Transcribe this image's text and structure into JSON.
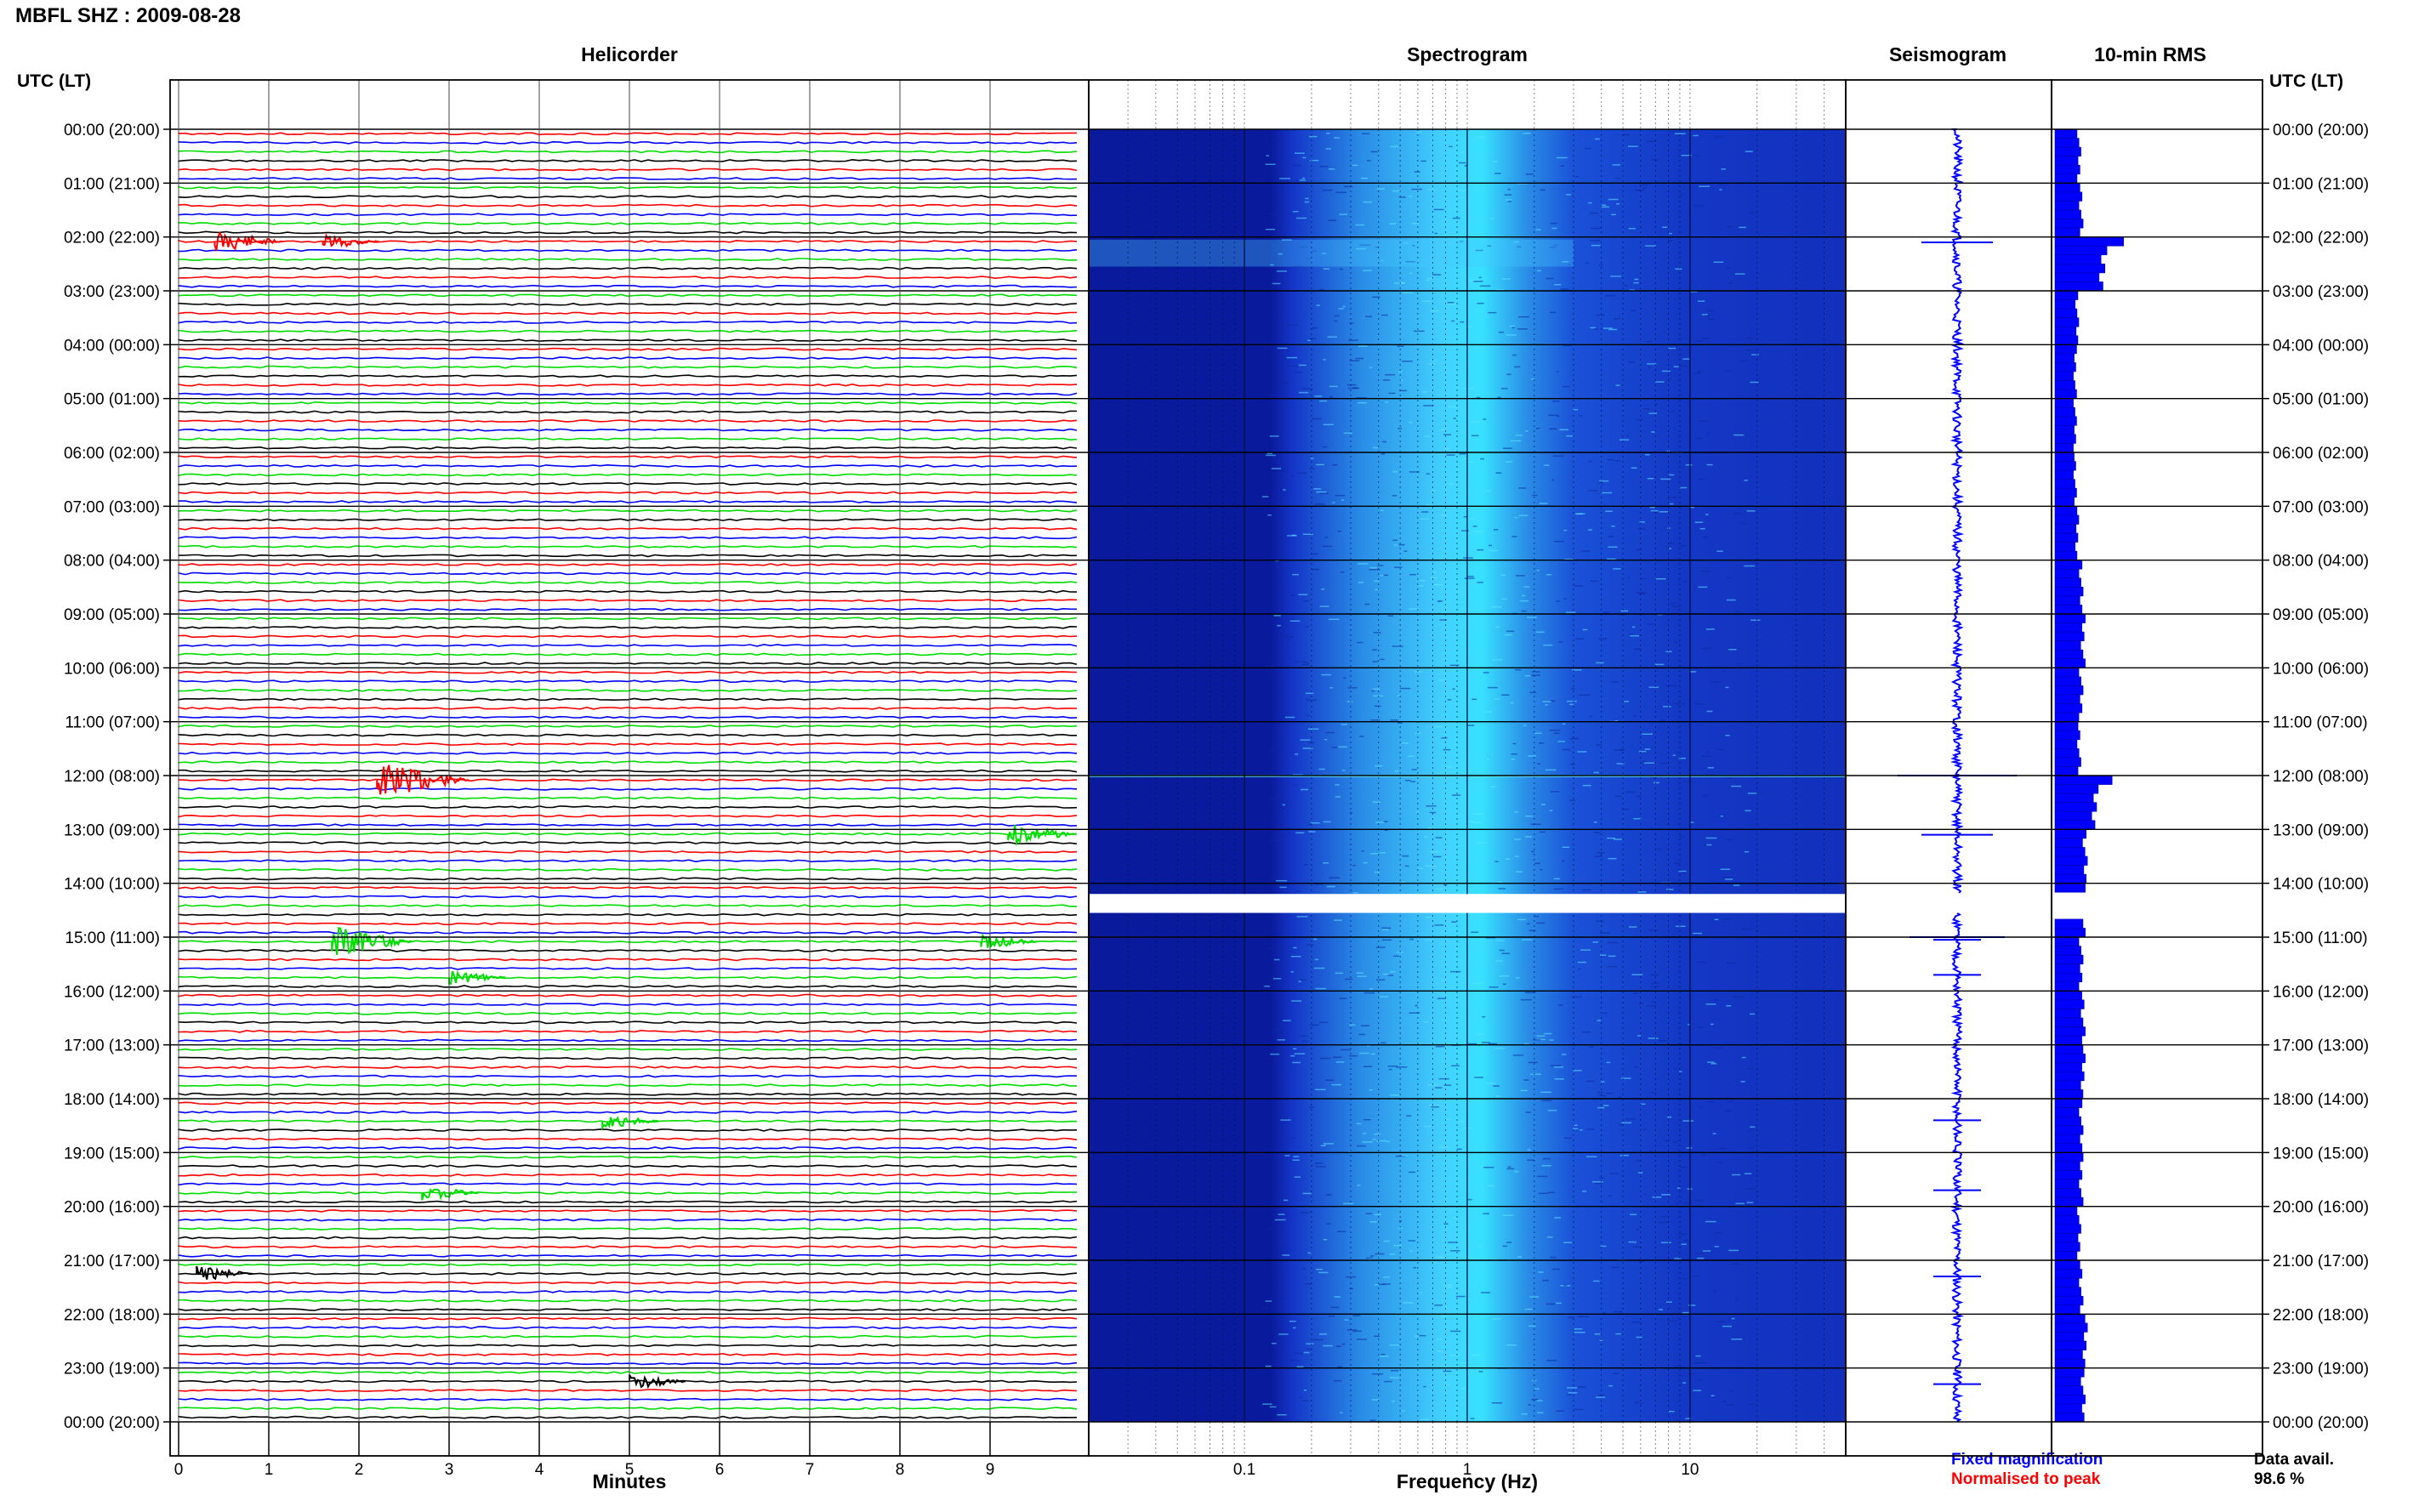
{
  "title": "MBFL SHZ : 2009-08-28",
  "utc_header": "UTC (LT)",
  "panels": {
    "helicorder": "Helicorder",
    "spectrogram": "Spectrogram",
    "seismogram": "Seismogram",
    "rms": "10-min RMS"
  },
  "footer": {
    "minutes_label": "Minutes",
    "frequency_label": "Frequency (Hz)",
    "legend_fixed": "Fixed magnification",
    "legend_normalised": "Normalised to peak",
    "data_avail_label": "Data avail.",
    "data_avail_value": "98.6 %"
  },
  "colors": {
    "fixed": "#0000ff",
    "normalised": "#ff0000",
    "trace_cycle": [
      "#ff0000",
      "#0000ff",
      "#00dd00",
      "#000000"
    ],
    "spectro_low": "#0a1a9c",
    "spectro_high": "#38e0ff"
  },
  "chart_data": {
    "type": "helicorder",
    "time_labels": [
      "00:00 (20:00)",
      "01:00 (21:00)",
      "02:00 (22:00)",
      "03:00 (23:00)",
      "04:00 (00:00)",
      "05:00 (01:00)",
      "06:00 (02:00)",
      "07:00 (03:00)",
      "08:00 (04:00)",
      "09:00 (05:00)",
      "10:00 (06:00)",
      "11:00 (07:00)",
      "12:00 (08:00)",
      "13:00 (09:00)",
      "14:00 (10:00)",
      "15:00 (11:00)",
      "16:00 (12:00)",
      "17:00 (13:00)",
      "18:00 (14:00)",
      "19:00 (15:00)",
      "20:00 (16:00)",
      "21:00 (17:00)",
      "22:00 (18:00)",
      "23:00 (19:00)",
      "00:00 (20:00)"
    ],
    "minutes_ticks": [
      "0",
      "1",
      "2",
      "3",
      "4",
      "5",
      "6",
      "7",
      "8",
      "9"
    ],
    "minutes_range": [
      0,
      10
    ],
    "traces_per_hour": 6,
    "frequency_ticks": [
      {
        "value": 0.1,
        "label": "0.1"
      },
      {
        "value": 1,
        "label": "1"
      },
      {
        "value": 10,
        "label": "10"
      }
    ],
    "frequency_range": [
      0.02,
      50
    ],
    "frequency_scale": "log",
    "spectral_peak_hz": 1,
    "data_gap_hours": [
      14.2,
      14.55
    ],
    "events": [
      {
        "hour": 2.1,
        "minute": 0.4,
        "amplitude": 3
      },
      {
        "hour": 2.1,
        "minute": 1.6,
        "amplitude": 2
      },
      {
        "hour": 12.0,
        "minute": 2.2,
        "amplitude": 5
      },
      {
        "hour": 13.1,
        "minute": 9.2,
        "amplitude": 3
      },
      {
        "hour": 15.0,
        "minute": 1.7,
        "amplitude": 4
      },
      {
        "hour": 15.05,
        "minute": 8.9,
        "amplitude": 2
      },
      {
        "hour": 15.7,
        "minute": 3.0,
        "amplitude": 2
      },
      {
        "hour": 18.4,
        "minute": 4.7,
        "amplitude": 2
      },
      {
        "hour": 19.7,
        "minute": 2.7,
        "amplitude": 2
      },
      {
        "hour": 21.3,
        "minute": 0.2,
        "amplitude": 2
      },
      {
        "hour": 23.3,
        "minute": 5.0,
        "amplitude": 2
      }
    ],
    "rms_hourly": [
      1.2,
      1.3,
      2.4,
      1.1,
      1.0,
      1.0,
      1.0,
      1.1,
      1.3,
      1.4,
      1.3,
      1.2,
      2.0,
      1.5,
      1.4,
      1.3,
      1.4,
      1.4,
      1.3,
      1.3,
      1.2,
      1.3,
      1.5,
      1.4
    ]
  }
}
